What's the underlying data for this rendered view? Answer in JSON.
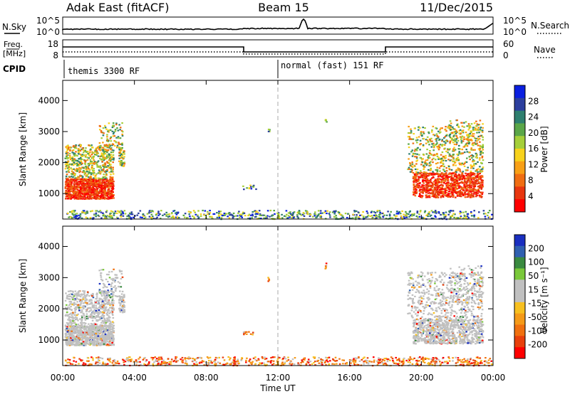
{
  "header": {
    "site": "Adak East (fitACF)",
    "beam": "Beam 15",
    "date": "11/Dec/2015"
  },
  "noise_panel": {
    "left_label": "N.Sky",
    "right_label": "N.Search",
    "left_ticks": [
      "10^5",
      "10^0"
    ],
    "right_ticks": [
      "10^5",
      "10^0"
    ]
  },
  "freq_panel": {
    "left_label_line1": "Freq.",
    "left_label_line2": "[MHz]",
    "right_label": "Nave",
    "left_ticks": [
      "18",
      "8"
    ],
    "right_ticks": [
      "60",
      "0"
    ]
  },
  "cpid_panel": {
    "label": "CPID",
    "segments": [
      {
        "start_hour": 0,
        "text": "themis 3300 RF"
      },
      {
        "start_hour": 12,
        "text": "normal (fast) 151 RF"
      }
    ]
  },
  "time_axis": {
    "label": "Time UT",
    "range_hours": [
      0,
      24
    ],
    "ticks": [
      "00:00",
      "04:00",
      "08:00",
      "12:00",
      "16:00",
      "20:00",
      "00:00"
    ]
  },
  "chart_data": [
    {
      "type": "heatmap",
      "name": "power",
      "ylabel": "Slant Range [km]",
      "ylim": [
        180,
        4650
      ],
      "yticks": [
        1000,
        2000,
        3000,
        4000
      ],
      "colorbar": {
        "label": "Power [dB]",
        "ticks": [
          "4",
          "8",
          "12",
          "16",
          "20",
          "24",
          "28"
        ],
        "colors": [
          "#0a1fe0",
          "#2c3f9e",
          "#2e7f6f",
          "#5aa648",
          "#a5cf3a",
          "#f7d21c",
          "#f8a016",
          "#f06d12",
          "#e8360f",
          "#ff0000"
        ]
      }
    },
    {
      "type": "heatmap",
      "name": "velocity",
      "ylabel": "Slant Range [km]",
      "ylim": [
        180,
        4650
      ],
      "yticks": [
        1000,
        2000,
        3000,
        4000
      ],
      "colorbar": {
        "label": "Velocity [m s⁻¹]",
        "ticks": [
          "200",
          "100",
          "50",
          "15",
          "-15",
          "-50",
          "-100",
          "-200"
        ],
        "colors": [
          "#1a2fc0",
          "#3060b0",
          "#3a8a40",
          "#7ac83a",
          "#c0c0c0",
          "#c0c0c0",
          "#f7c020",
          "#f59a18",
          "#f0700f",
          "#e8400c",
          "#ff0000"
        ]
      }
    }
  ]
}
